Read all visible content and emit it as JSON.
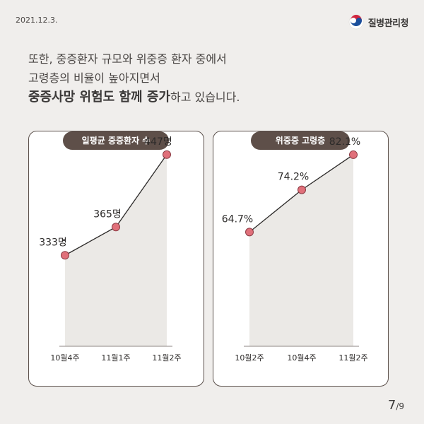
{
  "header": {
    "date": "2021.12.3.",
    "org_name": "질병관리청"
  },
  "intro": {
    "line1": "또한, 중증환자 규모와 위중증 환자 중에서",
    "line2": "고령층의 비율이 높아지면서",
    "line3_bold": "중증사망 위험도 함께 증가",
    "line3_rest": "하고 있습니다."
  },
  "pager": {
    "current": "7",
    "total": "/9"
  },
  "colors": {
    "background": "#f0eeec",
    "pill": "#5e4f49",
    "marker": "#e0707a",
    "area": "#ebe9e6",
    "line": "#2c2a29"
  },
  "chart_data": [
    {
      "type": "line",
      "title": "일평균 중증환자 수",
      "categories": [
        "10월4주",
        "11월1주",
        "11월2주"
      ],
      "values": [
        333,
        365,
        447
      ],
      "labels": [
        "333명",
        "365명",
        "447명"
      ],
      "ylim": [
        230,
        470
      ]
    },
    {
      "type": "line",
      "title": "위중증 고령층",
      "categories": [
        "10월2주",
        "10월4주",
        "11월2주"
      ],
      "values": [
        64.7,
        74.2,
        82.1
      ],
      "labels": [
        "64.7%",
        "74.2%",
        "82.1%"
      ],
      "ylim": [
        39,
        86.7
      ]
    }
  ]
}
